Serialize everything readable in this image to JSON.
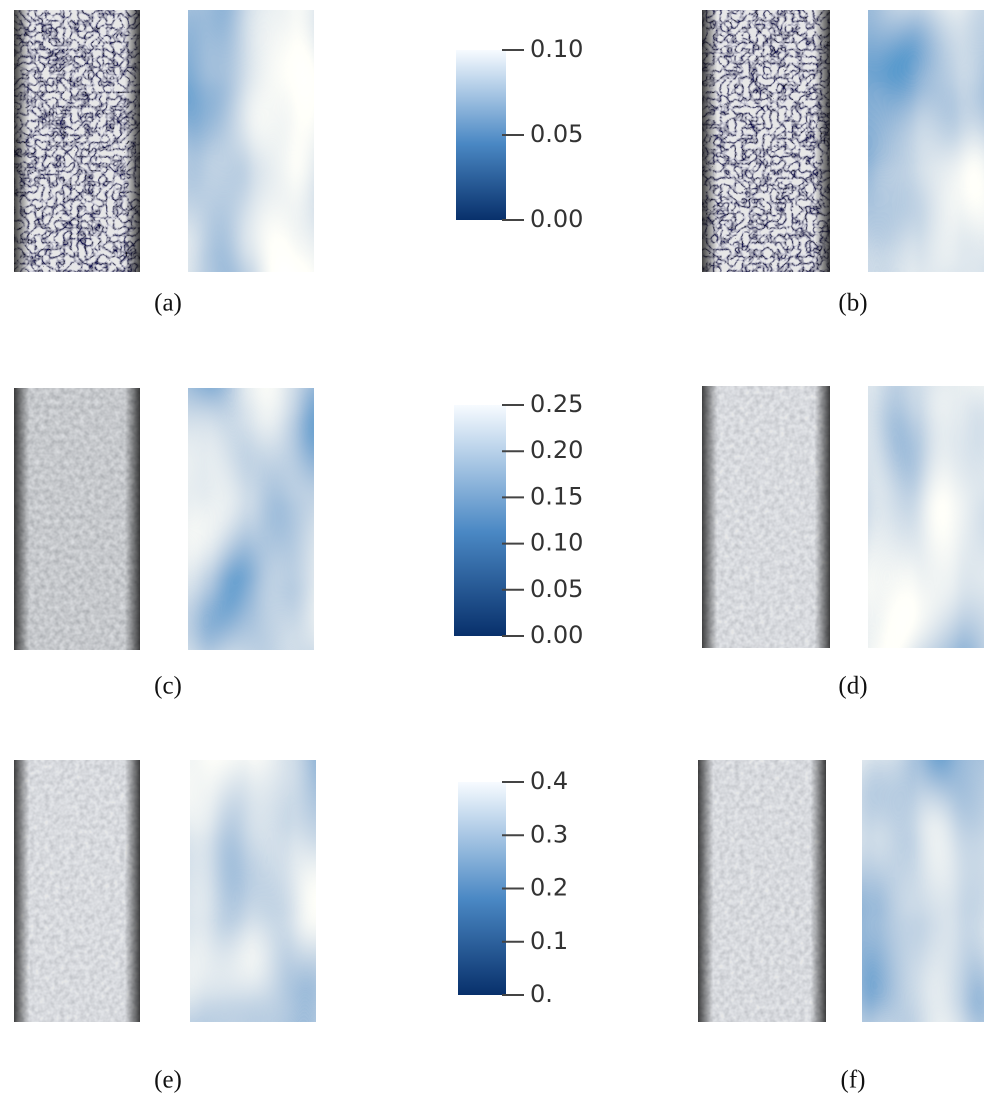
{
  "panels": [
    "(a)",
    "(b)",
    "(c)",
    "(d)",
    "(e)",
    "(f)"
  ],
  "colorbars": [
    {
      "range": [
        0,
        0.1
      ],
      "ticks": [
        {
          "value": 0.1,
          "label": "0.10"
        },
        {
          "value": 0.05,
          "label": "0.05"
        },
        {
          "value": 0,
          "label": "0.00"
        }
      ]
    },
    {
      "range": [
        0,
        0.25
      ],
      "ticks": [
        {
          "value": 0.25,
          "label": "0.25"
        },
        {
          "value": 0.2,
          "label": "0.20"
        },
        {
          "value": 0.15,
          "label": "0.15"
        },
        {
          "value": 0.1,
          "label": "0.10"
        },
        {
          "value": 0.05,
          "label": "0.05"
        },
        {
          "value": 0,
          "label": "0.00"
        }
      ]
    },
    {
      "range": [
        0,
        0.4
      ],
      "ticks": [
        {
          "value": 0.4,
          "label": "0.4"
        },
        {
          "value": 0.3,
          "label": "0.3"
        },
        {
          "value": 0.2,
          "label": "0.2"
        },
        {
          "value": 0.1,
          "label": "0.1"
        },
        {
          "value": 0,
          "label": "0."
        }
      ]
    }
  ]
}
